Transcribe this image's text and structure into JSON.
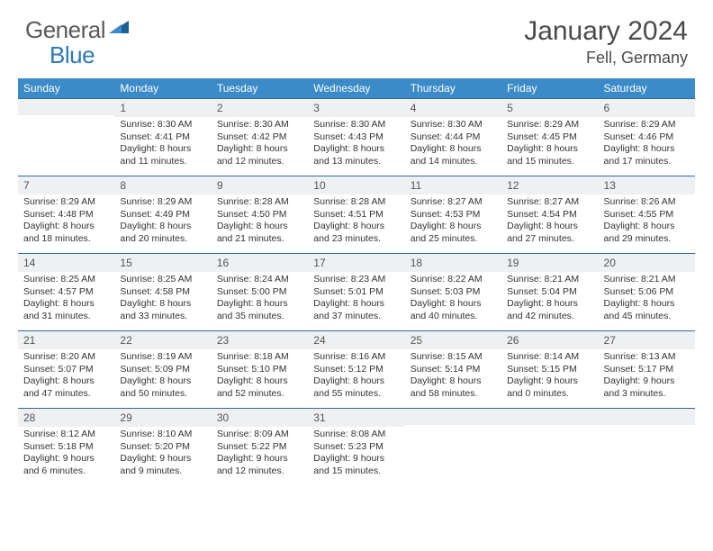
{
  "brand": {
    "part1": "General",
    "part2": "Blue"
  },
  "title": "January 2024",
  "location": "Fell, Germany",
  "colors": {
    "header_bg": "#3b8bc9",
    "row_border": "#2a6aa0",
    "daynum_bg": "#eef0f2",
    "text": "#333333",
    "brand_gray": "#5a5a5a",
    "brand_blue": "#2a7ab8"
  },
  "dow": [
    "Sunday",
    "Monday",
    "Tuesday",
    "Wednesday",
    "Thursday",
    "Friday",
    "Saturday"
  ],
  "weeks": [
    [
      {
        "n": "",
        "sr": "",
        "ss": "",
        "dl": ""
      },
      {
        "n": "1",
        "sr": "Sunrise: 8:30 AM",
        "ss": "Sunset: 4:41 PM",
        "dl": "Daylight: 8 hours and 11 minutes."
      },
      {
        "n": "2",
        "sr": "Sunrise: 8:30 AM",
        "ss": "Sunset: 4:42 PM",
        "dl": "Daylight: 8 hours and 12 minutes."
      },
      {
        "n": "3",
        "sr": "Sunrise: 8:30 AM",
        "ss": "Sunset: 4:43 PM",
        "dl": "Daylight: 8 hours and 13 minutes."
      },
      {
        "n": "4",
        "sr": "Sunrise: 8:30 AM",
        "ss": "Sunset: 4:44 PM",
        "dl": "Daylight: 8 hours and 14 minutes."
      },
      {
        "n": "5",
        "sr": "Sunrise: 8:29 AM",
        "ss": "Sunset: 4:45 PM",
        "dl": "Daylight: 8 hours and 15 minutes."
      },
      {
        "n": "6",
        "sr": "Sunrise: 8:29 AM",
        "ss": "Sunset: 4:46 PM",
        "dl": "Daylight: 8 hours and 17 minutes."
      }
    ],
    [
      {
        "n": "7",
        "sr": "Sunrise: 8:29 AM",
        "ss": "Sunset: 4:48 PM",
        "dl": "Daylight: 8 hours and 18 minutes."
      },
      {
        "n": "8",
        "sr": "Sunrise: 8:29 AM",
        "ss": "Sunset: 4:49 PM",
        "dl": "Daylight: 8 hours and 20 minutes."
      },
      {
        "n": "9",
        "sr": "Sunrise: 8:28 AM",
        "ss": "Sunset: 4:50 PM",
        "dl": "Daylight: 8 hours and 21 minutes."
      },
      {
        "n": "10",
        "sr": "Sunrise: 8:28 AM",
        "ss": "Sunset: 4:51 PM",
        "dl": "Daylight: 8 hours and 23 minutes."
      },
      {
        "n": "11",
        "sr": "Sunrise: 8:27 AM",
        "ss": "Sunset: 4:53 PM",
        "dl": "Daylight: 8 hours and 25 minutes."
      },
      {
        "n": "12",
        "sr": "Sunrise: 8:27 AM",
        "ss": "Sunset: 4:54 PM",
        "dl": "Daylight: 8 hours and 27 minutes."
      },
      {
        "n": "13",
        "sr": "Sunrise: 8:26 AM",
        "ss": "Sunset: 4:55 PM",
        "dl": "Daylight: 8 hours and 29 minutes."
      }
    ],
    [
      {
        "n": "14",
        "sr": "Sunrise: 8:25 AM",
        "ss": "Sunset: 4:57 PM",
        "dl": "Daylight: 8 hours and 31 minutes."
      },
      {
        "n": "15",
        "sr": "Sunrise: 8:25 AM",
        "ss": "Sunset: 4:58 PM",
        "dl": "Daylight: 8 hours and 33 minutes."
      },
      {
        "n": "16",
        "sr": "Sunrise: 8:24 AM",
        "ss": "Sunset: 5:00 PM",
        "dl": "Daylight: 8 hours and 35 minutes."
      },
      {
        "n": "17",
        "sr": "Sunrise: 8:23 AM",
        "ss": "Sunset: 5:01 PM",
        "dl": "Daylight: 8 hours and 37 minutes."
      },
      {
        "n": "18",
        "sr": "Sunrise: 8:22 AM",
        "ss": "Sunset: 5:03 PM",
        "dl": "Daylight: 8 hours and 40 minutes."
      },
      {
        "n": "19",
        "sr": "Sunrise: 8:21 AM",
        "ss": "Sunset: 5:04 PM",
        "dl": "Daylight: 8 hours and 42 minutes."
      },
      {
        "n": "20",
        "sr": "Sunrise: 8:21 AM",
        "ss": "Sunset: 5:06 PM",
        "dl": "Daylight: 8 hours and 45 minutes."
      }
    ],
    [
      {
        "n": "21",
        "sr": "Sunrise: 8:20 AM",
        "ss": "Sunset: 5:07 PM",
        "dl": "Daylight: 8 hours and 47 minutes."
      },
      {
        "n": "22",
        "sr": "Sunrise: 8:19 AM",
        "ss": "Sunset: 5:09 PM",
        "dl": "Daylight: 8 hours and 50 minutes."
      },
      {
        "n": "23",
        "sr": "Sunrise: 8:18 AM",
        "ss": "Sunset: 5:10 PM",
        "dl": "Daylight: 8 hours and 52 minutes."
      },
      {
        "n": "24",
        "sr": "Sunrise: 8:16 AM",
        "ss": "Sunset: 5:12 PM",
        "dl": "Daylight: 8 hours and 55 minutes."
      },
      {
        "n": "25",
        "sr": "Sunrise: 8:15 AM",
        "ss": "Sunset: 5:14 PM",
        "dl": "Daylight: 8 hours and 58 minutes."
      },
      {
        "n": "26",
        "sr": "Sunrise: 8:14 AM",
        "ss": "Sunset: 5:15 PM",
        "dl": "Daylight: 9 hours and 0 minutes."
      },
      {
        "n": "27",
        "sr": "Sunrise: 8:13 AM",
        "ss": "Sunset: 5:17 PM",
        "dl": "Daylight: 9 hours and 3 minutes."
      }
    ],
    [
      {
        "n": "28",
        "sr": "Sunrise: 8:12 AM",
        "ss": "Sunset: 5:18 PM",
        "dl": "Daylight: 9 hours and 6 minutes."
      },
      {
        "n": "29",
        "sr": "Sunrise: 8:10 AM",
        "ss": "Sunset: 5:20 PM",
        "dl": "Daylight: 9 hours and 9 minutes."
      },
      {
        "n": "30",
        "sr": "Sunrise: 8:09 AM",
        "ss": "Sunset: 5:22 PM",
        "dl": "Daylight: 9 hours and 12 minutes."
      },
      {
        "n": "31",
        "sr": "Sunrise: 8:08 AM",
        "ss": "Sunset: 5:23 PM",
        "dl": "Daylight: 9 hours and 15 minutes."
      },
      {
        "n": "",
        "sr": "",
        "ss": "",
        "dl": ""
      },
      {
        "n": "",
        "sr": "",
        "ss": "",
        "dl": ""
      },
      {
        "n": "",
        "sr": "",
        "ss": "",
        "dl": ""
      }
    ]
  ]
}
